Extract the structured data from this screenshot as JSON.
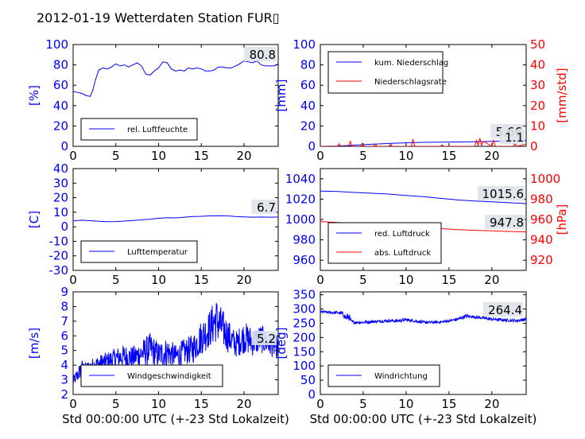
{
  "figure": {
    "title": "2012-01-19 Wetterdaten Station FUR▯"
  },
  "colors": {
    "blue": "#0000ff",
    "red": "#ff0000",
    "black": "#000000",
    "valuebox": "#dde3ea"
  },
  "chart_data": [
    {
      "type": "line",
      "panel": "humidity",
      "xlabel": "",
      "ylabel": "[%]",
      "ylim": [
        0,
        100
      ],
      "xlim": [
        0,
        24
      ],
      "yticks": [
        0,
        20,
        40,
        60,
        80,
        100
      ],
      "xticks": [
        0,
        5,
        10,
        15,
        20
      ],
      "current_value": "80.8",
      "legend": {
        "placement": "lower-left"
      },
      "series": [
        {
          "name": "rel. Luftfeuchte",
          "axis": "left",
          "color": "#0000ff",
          "x": [
            0,
            0.5,
            1,
            1.5,
            2,
            2.3,
            2.6,
            3,
            3.5,
            4,
            4.5,
            5,
            5.5,
            6,
            6.5,
            7,
            7.5,
            8,
            8.5,
            9,
            9.5,
            10,
            10.5,
            11,
            11.5,
            12,
            12.5,
            13,
            13.5,
            14,
            14.5,
            15,
            15.5,
            16,
            16.5,
            17,
            17.5,
            18,
            18.5,
            19,
            19.5,
            20,
            20.5,
            21,
            21.5,
            22,
            22.5,
            23,
            23.5,
            24
          ],
          "values": [
            54,
            53,
            52,
            50,
            49,
            55,
            65,
            75,
            77,
            76,
            78,
            81,
            79,
            80,
            78,
            80,
            82,
            79,
            71,
            70,
            74,
            77,
            83,
            82,
            76,
            74,
            75,
            74,
            77,
            76,
            77,
            76,
            74,
            74,
            75,
            78,
            78,
            77,
            77,
            79,
            81,
            84,
            83,
            82,
            84,
            80,
            79,
            79,
            79,
            80.8
          ]
        }
      ]
    },
    {
      "type": "line",
      "panel": "precipitation",
      "xlabel": "",
      "ylabel": "[mm]",
      "ylabel_right": "[mm/std]",
      "ylim": [
        0,
        100
      ],
      "ylim_right": [
        0,
        50
      ],
      "xlim": [
        0,
        24
      ],
      "yticks": [
        0,
        20,
        40,
        60,
        80,
        100
      ],
      "yticks_right": [
        0,
        10,
        20,
        30,
        40,
        50
      ],
      "xticks": [
        0,
        5,
        10,
        15,
        20
      ],
      "current_values": [
        "5.66",
        "1.1"
      ],
      "legend": {
        "placement": "upper-left"
      },
      "series": [
        {
          "name": "kum. Niederschlag",
          "axis": "left",
          "color": "#0000ff",
          "x": [
            0,
            2,
            4,
            6,
            8,
            10,
            12,
            14,
            16,
            18,
            20,
            22,
            24
          ],
          "values": [
            0,
            0.3,
            1.2,
            2.0,
            2.8,
            3.5,
            3.9,
            4.1,
            4.3,
            4.5,
            4.9,
            5.4,
            5.66
          ]
        },
        {
          "name": "Niederschlagsrate",
          "axis": "right",
          "color": "#ff0000",
          "x": [
            0,
            2.0,
            2.2,
            2.4,
            3.3,
            3.5,
            3.7,
            4.7,
            4.9,
            5.1,
            6.2,
            6.4,
            6.6,
            8.0,
            8.2,
            8.4,
            10.6,
            10.8,
            11.0,
            14.0,
            14.2,
            14.4,
            18.0,
            18.2,
            18.4,
            18.6,
            18.8,
            19.0,
            20.0,
            20.2,
            20.4,
            22.5,
            22.7,
            22.9,
            24
          ],
          "values": [
            0,
            0,
            1.2,
            0,
            0,
            2.5,
            0,
            0,
            1.5,
            0,
            0,
            1.2,
            0,
            0,
            1.0,
            0,
            0,
            3.5,
            0,
            0,
            0.8,
            0,
            0,
            3.0,
            0.5,
            4.0,
            0.5,
            2.5,
            0,
            3.0,
            0,
            0,
            1.5,
            0,
            1.1
          ]
        }
      ]
    },
    {
      "type": "line",
      "panel": "temperature",
      "xlabel": "",
      "ylabel": "[C]",
      "ylim": [
        -30,
        40
      ],
      "xlim": [
        0,
        24
      ],
      "yticks": [
        -30,
        -20,
        -10,
        0,
        10,
        20,
        30,
        40
      ],
      "xticks": [
        0,
        5,
        10,
        15,
        20
      ],
      "current_value": "6.7",
      "legend": {
        "placement": "lower-left"
      },
      "series": [
        {
          "name": "Lufttemperatur",
          "axis": "left",
          "color": "#0000ff",
          "x": [
            0,
            1,
            2,
            3,
            4,
            5,
            6,
            7,
            8,
            9,
            10,
            11,
            12,
            13,
            14,
            15,
            16,
            17,
            18,
            19,
            20,
            21,
            22,
            23,
            24
          ],
          "values": [
            4,
            4.5,
            4.2,
            3.8,
            3.5,
            3.6,
            3.9,
            4.3,
            4.8,
            5.2,
            5.8,
            6.2,
            6.1,
            6.6,
            7.0,
            7.2,
            7.5,
            7.6,
            7.5,
            7.0,
            6.8,
            6.6,
            6.7,
            6.6,
            6.7
          ]
        }
      ]
    },
    {
      "type": "line",
      "panel": "pressure",
      "xlabel": "",
      "ylabel": "",
      "ylabel_right": "[hPa]",
      "ylim": [
        950,
        1050
      ],
      "ylim_right": [
        910,
        1010
      ],
      "xlim": [
        0,
        24
      ],
      "yticks": [
        960,
        980,
        1000,
        1020,
        1040
      ],
      "yticks_right": [
        920,
        940,
        960,
        980,
        1000
      ],
      "xticks": [
        0,
        5,
        10,
        15,
        20
      ],
      "current_values": [
        "1015.6",
        "947.8"
      ],
      "legend": {
        "placement": "lower-left"
      },
      "series": [
        {
          "name": "red. Luftdruck",
          "axis": "left",
          "color": "#0000ff",
          "x": [
            0,
            2,
            4,
            6,
            8,
            10,
            12,
            14,
            16,
            18,
            20,
            22,
            24
          ],
          "values": [
            1028,
            1027.5,
            1026.6,
            1025.8,
            1025,
            1023.6,
            1022.5,
            1020.8,
            1019.2,
            1018.1,
            1017.4,
            1016.5,
            1015.6
          ]
        },
        {
          "name": "abs. Luftdruck",
          "axis": "right",
          "color": "#ff0000",
          "x": [
            0,
            2,
            4,
            6,
            8,
            10,
            12,
            14,
            16,
            18,
            20,
            22,
            24
          ],
          "values": [
            958,
            957,
            956,
            955,
            954.2,
            953.3,
            952.4,
            951,
            950,
            949.4,
            948.9,
            948.3,
            947.8
          ]
        }
      ]
    },
    {
      "type": "line",
      "panel": "windspeed",
      "xlabel": "Std 00:00:00 UTC (+-23 Std Lokalzeit)",
      "ylabel": "[m/s]",
      "ylim": [
        2,
        9
      ],
      "xlim": [
        0,
        24
      ],
      "yticks": [
        2,
        3,
        4,
        5,
        6,
        7,
        8,
        9
      ],
      "xticks": [
        0,
        5,
        10,
        15,
        20
      ],
      "current_value": "5.2",
      "legend": {
        "placement": "lower-left"
      },
      "series": [
        {
          "name": "Windgeschwindigkeit",
          "axis": "left",
          "color": "#0000ff",
          "noisy": true,
          "x": [
            0,
            0.5,
            1,
            1.5,
            2,
            3,
            4,
            5,
            6,
            7,
            8,
            9,
            10,
            11,
            12,
            13,
            14,
            15,
            16,
            16.7,
            17.5,
            18,
            19,
            20,
            21,
            22,
            23,
            24
          ],
          "values": [
            2.9,
            3.3,
            3.8,
            3.7,
            3.9,
            4.1,
            4.3,
            4.5,
            4.6,
            4.5,
            4.8,
            5.1,
            4.7,
            4.9,
            4.6,
            4.9,
            5.1,
            5.9,
            6.5,
            7.1,
            6.5,
            6.1,
            5.4,
            5.9,
            5.6,
            5.8,
            5.4,
            5.2
          ],
          "amplitude": [
            0.3,
            0.5,
            0.6,
            0.5,
            0.5,
            0.6,
            0.6,
            0.7,
            0.8,
            0.8,
            0.9,
            1.1,
            0.9,
            1.0,
            0.8,
            0.9,
            1.0,
            1.2,
            1.3,
            1.6,
            1.3,
            1.2,
            0.9,
            1.1,
            1.0,
            1.0,
            0.8,
            0.8
          ]
        }
      ]
    },
    {
      "type": "line",
      "panel": "winddirection",
      "xlabel": "Std 00:00:00 UTC (+-23 Std Lokalzeit)",
      "ylabel": "[deg]",
      "ylim": [
        0,
        360
      ],
      "xlim": [
        0,
        24
      ],
      "yticks": [
        0,
        50,
        100,
        150,
        200,
        250,
        300,
        350
      ],
      "xticks": [
        0,
        5,
        10,
        15,
        20
      ],
      "current_value": "264.4",
      "legend": {
        "placement": "lower-left"
      },
      "series": [
        {
          "name": "Windrichtung",
          "axis": "left",
          "color": "#0000ff",
          "noisy": true,
          "x": [
            0,
            1,
            2,
            2.6,
            3,
            3.3,
            3.6,
            4,
            5,
            6,
            7,
            8,
            9,
            10,
            11,
            12,
            13,
            14,
            15,
            16,
            17,
            18,
            19,
            20,
            21,
            22,
            23,
            24
          ],
          "values": [
            290,
            288,
            287,
            283,
            268,
            275,
            256,
            253,
            253,
            255,
            257,
            259,
            258,
            262,
            258,
            253,
            253,
            254,
            258,
            264,
            275,
            272,
            268,
            264,
            262,
            260,
            259,
            264.4
          ],
          "amplitude": [
            5,
            5,
            5,
            8,
            12,
            15,
            6,
            5,
            5,
            5,
            5,
            5,
            5,
            6,
            5,
            5,
            5,
            5,
            5,
            6,
            6,
            5,
            5,
            5,
            5,
            5,
            5,
            5
          ]
        }
      ]
    }
  ]
}
